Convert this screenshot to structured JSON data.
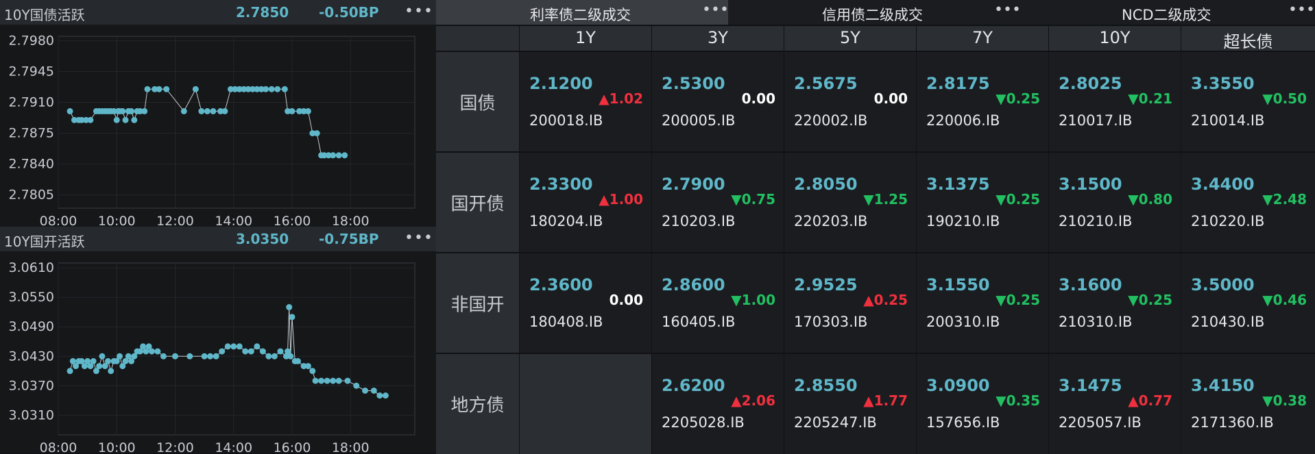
{
  "charts": [
    {
      "title": "10Y国债活跃",
      "value": "2.7850",
      "change": "-0.50BP",
      "more": "•••",
      "chart_data": {
        "type": "line",
        "xticks": [
          "08:00",
          "10:00",
          "12:00",
          "14:00",
          "16:00",
          "18:00"
        ],
        "yticks": [
          "2.7980",
          "2.7945",
          "2.7910",
          "2.7875",
          "2.7840",
          "2.7805"
        ],
        "xlim": [
          8,
          20.2
        ],
        "ylim": [
          2.779,
          2.7985
        ],
        "grid": true,
        "color": "#5fb7c9",
        "series": [
          {
            "x": [
              8.4,
              8.55,
              8.7,
              8.8,
              8.95,
              9.1,
              9.3,
              9.4,
              9.5,
              9.6,
              9.7,
              9.8,
              9.9,
              10.0,
              10.05,
              10.1,
              10.2,
              10.3,
              10.4,
              10.5,
              10.6,
              10.7,
              10.8,
              10.95,
              11.05,
              11.3,
              11.45,
              11.7,
              12.3,
              12.7,
              12.9,
              13.1,
              13.3,
              13.55,
              13.7,
              13.9,
              14.05,
              14.2,
              14.35,
              14.5,
              14.65,
              14.8,
              14.95,
              15.1,
              15.3,
              15.5,
              15.75,
              15.85,
              16.0,
              16.25,
              16.4,
              16.55,
              16.7,
              16.85,
              17.0,
              17.1,
              17.25,
              17.4,
              17.6,
              17.8
            ],
            "y": [
              2.79,
              2.789,
              2.789,
              2.789,
              2.789,
              2.789,
              2.79,
              2.79,
              2.79,
              2.79,
              2.79,
              2.79,
              2.79,
              2.789,
              2.79,
              2.79,
              2.79,
              2.789,
              2.79,
              2.79,
              2.789,
              2.79,
              2.79,
              2.79,
              2.7925,
              2.7925,
              2.7925,
              2.7925,
              2.79,
              2.7925,
              2.79,
              2.79,
              2.79,
              2.79,
              2.79,
              2.7925,
              2.7925,
              2.7925,
              2.7925,
              2.7925,
              2.7925,
              2.7925,
              2.7925,
              2.7925,
              2.7925,
              2.7925,
              2.7925,
              2.79,
              2.79,
              2.79,
              2.79,
              2.79,
              2.7875,
              2.7875,
              2.785,
              2.785,
              2.785,
              2.785,
              2.785,
              2.785
            ]
          }
        ]
      }
    },
    {
      "title": "10Y国开活跃",
      "value": "3.0350",
      "change": "-0.75BP",
      "more": "•••",
      "chart_data": {
        "type": "line",
        "xticks": [
          "08:00",
          "10:00",
          "12:00",
          "14:00",
          "16:00",
          "18:00"
        ],
        "yticks": [
          "3.0610",
          "3.0550",
          "3.0490",
          "3.0430",
          "3.0370",
          "3.0310"
        ],
        "xlim": [
          8,
          20.2
        ],
        "ylim": [
          3.027,
          3.062
        ],
        "grid": true,
        "color": "#5fb7c9",
        "series": [
          {
            "x": [
              8.4,
              8.5,
              8.6,
              8.7,
              8.8,
              8.9,
              9.0,
              9.1,
              9.2,
              9.3,
              9.4,
              9.5,
              9.6,
              9.7,
              9.8,
              9.9,
              10.0,
              10.1,
              10.2,
              10.3,
              10.4,
              10.5,
              10.6,
              10.7,
              10.8,
              10.9,
              11.0,
              11.1,
              11.2,
              11.4,
              11.6,
              12.0,
              12.5,
              13.0,
              13.2,
              13.4,
              13.6,
              13.8,
              14.0,
              14.2,
              14.4,
              14.6,
              14.8,
              15.0,
              15.2,
              15.4,
              15.6,
              15.8,
              15.85,
              15.9,
              15.95,
              16.0,
              16.1,
              16.2,
              16.4,
              16.55,
              16.7,
              16.8,
              17.0,
              17.2,
              17.4,
              17.6,
              17.9,
              18.2,
              18.5,
              18.8,
              19.0,
              19.2
            ],
            "y": [
              3.04,
              3.042,
              3.041,
              3.042,
              3.042,
              3.041,
              3.042,
              3.041,
              3.042,
              3.04,
              3.041,
              3.043,
              3.041,
              3.042,
              3.04,
              3.042,
              3.042,
              3.043,
              3.041,
              3.042,
              3.043,
              3.042,
              3.043,
              3.044,
              3.044,
              3.045,
              3.044,
              3.045,
              3.044,
              3.044,
              3.043,
              3.043,
              3.043,
              3.043,
              3.043,
              3.043,
              3.044,
              3.045,
              3.045,
              3.045,
              3.044,
              3.044,
              3.045,
              3.044,
              3.043,
              3.043,
              3.044,
              3.043,
              3.044,
              3.053,
              3.043,
              3.051,
              3.042,
              3.042,
              3.041,
              3.041,
              3.04,
              3.038,
              3.038,
              3.038,
              3.038,
              3.038,
              3.038,
              3.037,
              3.036,
              3.036,
              3.035,
              3.035
            ]
          }
        ]
      }
    }
  ],
  "tabs": [
    {
      "label": "利率债二级成交",
      "more": "•••",
      "active": true
    },
    {
      "label": "信用债二级成交",
      "more": "•••",
      "active": false
    },
    {
      "label": "NCD二级成交",
      "more": "•••",
      "active": false
    }
  ],
  "grid": {
    "columns": [
      "1Y",
      "3Y",
      "5Y",
      "7Y",
      "10Y",
      "超长债"
    ],
    "rows": [
      {
        "label": "国债",
        "cells": [
          {
            "yield": "2.1200",
            "change": "▲1.02",
            "dir": "up",
            "bond": "200018.IB"
          },
          {
            "yield": "2.5300",
            "change": "0.00",
            "dir": "flat",
            "bond": "200005.IB"
          },
          {
            "yield": "2.5675",
            "change": "0.00",
            "dir": "flat",
            "bond": "220002.IB"
          },
          {
            "yield": "2.8175",
            "change": "▼0.25",
            "dir": "down",
            "bond": "220006.IB"
          },
          {
            "yield": "2.8025",
            "change": "▼0.21",
            "dir": "down",
            "bond": "210017.IB"
          },
          {
            "yield": "3.3550",
            "change": "▼0.50",
            "dir": "down",
            "bond": "210014.IB"
          }
        ]
      },
      {
        "label": "国开债",
        "cells": [
          {
            "yield": "2.3300",
            "change": "▲1.00",
            "dir": "up",
            "bond": "180204.IB"
          },
          {
            "yield": "2.7900",
            "change": "▼0.75",
            "dir": "down",
            "bond": "210203.IB"
          },
          {
            "yield": "2.8050",
            "change": "▼1.25",
            "dir": "down",
            "bond": "220203.IB"
          },
          {
            "yield": "3.1375",
            "change": "▼0.25",
            "dir": "down",
            "bond": "190210.IB"
          },
          {
            "yield": "3.1500",
            "change": "▼0.80",
            "dir": "down",
            "bond": "210210.IB"
          },
          {
            "yield": "3.4400",
            "change": "▼2.48",
            "dir": "down",
            "bond": "210220.IB"
          }
        ]
      },
      {
        "label": "非国开",
        "cells": [
          {
            "yield": "2.3600",
            "change": "0.00",
            "dir": "flat",
            "bond": "180408.IB"
          },
          {
            "yield": "2.8600",
            "change": "▼1.00",
            "dir": "down",
            "bond": "160405.IB"
          },
          {
            "yield": "2.9525",
            "change": "▲0.25",
            "dir": "up",
            "bond": "170303.IB"
          },
          {
            "yield": "3.1550",
            "change": "▼0.25",
            "dir": "down",
            "bond": "200310.IB"
          },
          {
            "yield": "3.1600",
            "change": "▼0.25",
            "dir": "down",
            "bond": "210310.IB"
          },
          {
            "yield": "3.5000",
            "change": "▼0.46",
            "dir": "down",
            "bond": "210430.IB"
          }
        ]
      },
      {
        "label": "地方债",
        "cells": [
          null,
          {
            "yield": "2.6200",
            "change": "▲2.06",
            "dir": "up",
            "bond": "2205028.IB"
          },
          {
            "yield": "2.8550",
            "change": "▲1.77",
            "dir": "up",
            "bond": "2205247.IB"
          },
          {
            "yield": "3.0900",
            "change": "▼0.35",
            "dir": "down",
            "bond": "157656.IB"
          },
          {
            "yield": "3.1475",
            "change": "▲0.77",
            "dir": "up",
            "bond": "2205057.IB"
          },
          {
            "yield": "3.4150",
            "change": "▼0.38",
            "dir": "down",
            "bond": "2171360.IB"
          }
        ]
      }
    ]
  }
}
